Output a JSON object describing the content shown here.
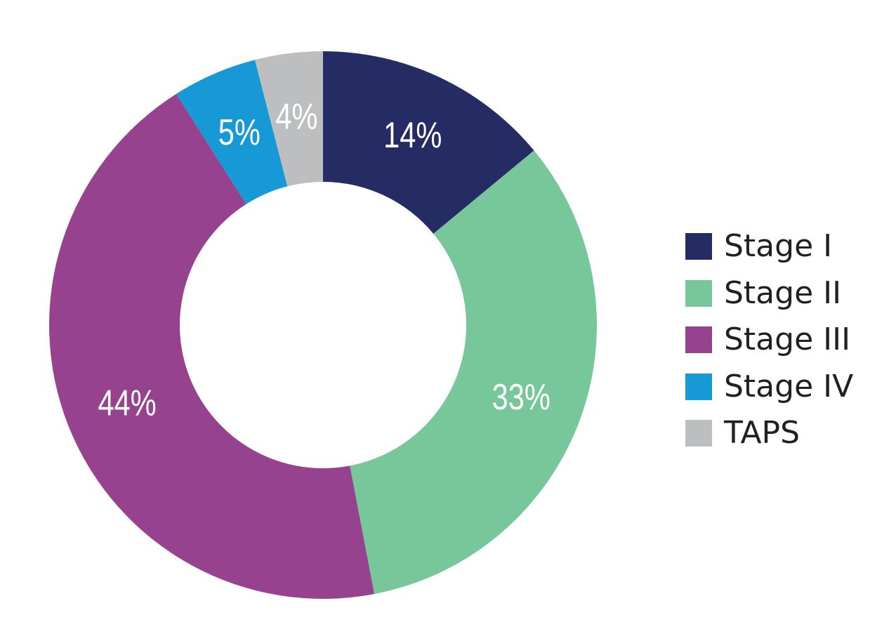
{
  "chart_data": {
    "type": "pie",
    "variant": "donut",
    "title": "",
    "categories": [
      "Stage I",
      "Stage II",
      "Stage III",
      "Stage IV",
      "TAPS"
    ],
    "values": [
      14,
      33,
      44,
      5,
      4
    ],
    "labels": [
      "14%",
      "33%",
      "44%",
      "5%",
      "4%"
    ],
    "colors": [
      "#252b63",
      "#78c79b",
      "#96428f",
      "#1799d6",
      "#bcbec0"
    ],
    "start_angle_deg": 0,
    "direction": "clockwise",
    "legend_position": "right"
  },
  "legend": {
    "items": [
      {
        "label": "Stage I",
        "color": "#252b63"
      },
      {
        "label": "Stage II",
        "color": "#78c79b"
      },
      {
        "label": "Stage III",
        "color": "#96428f"
      },
      {
        "label": "Stage IV",
        "color": "#1799d6"
      },
      {
        "label": "TAPS",
        "color": "#bcbec0"
      }
    ]
  }
}
